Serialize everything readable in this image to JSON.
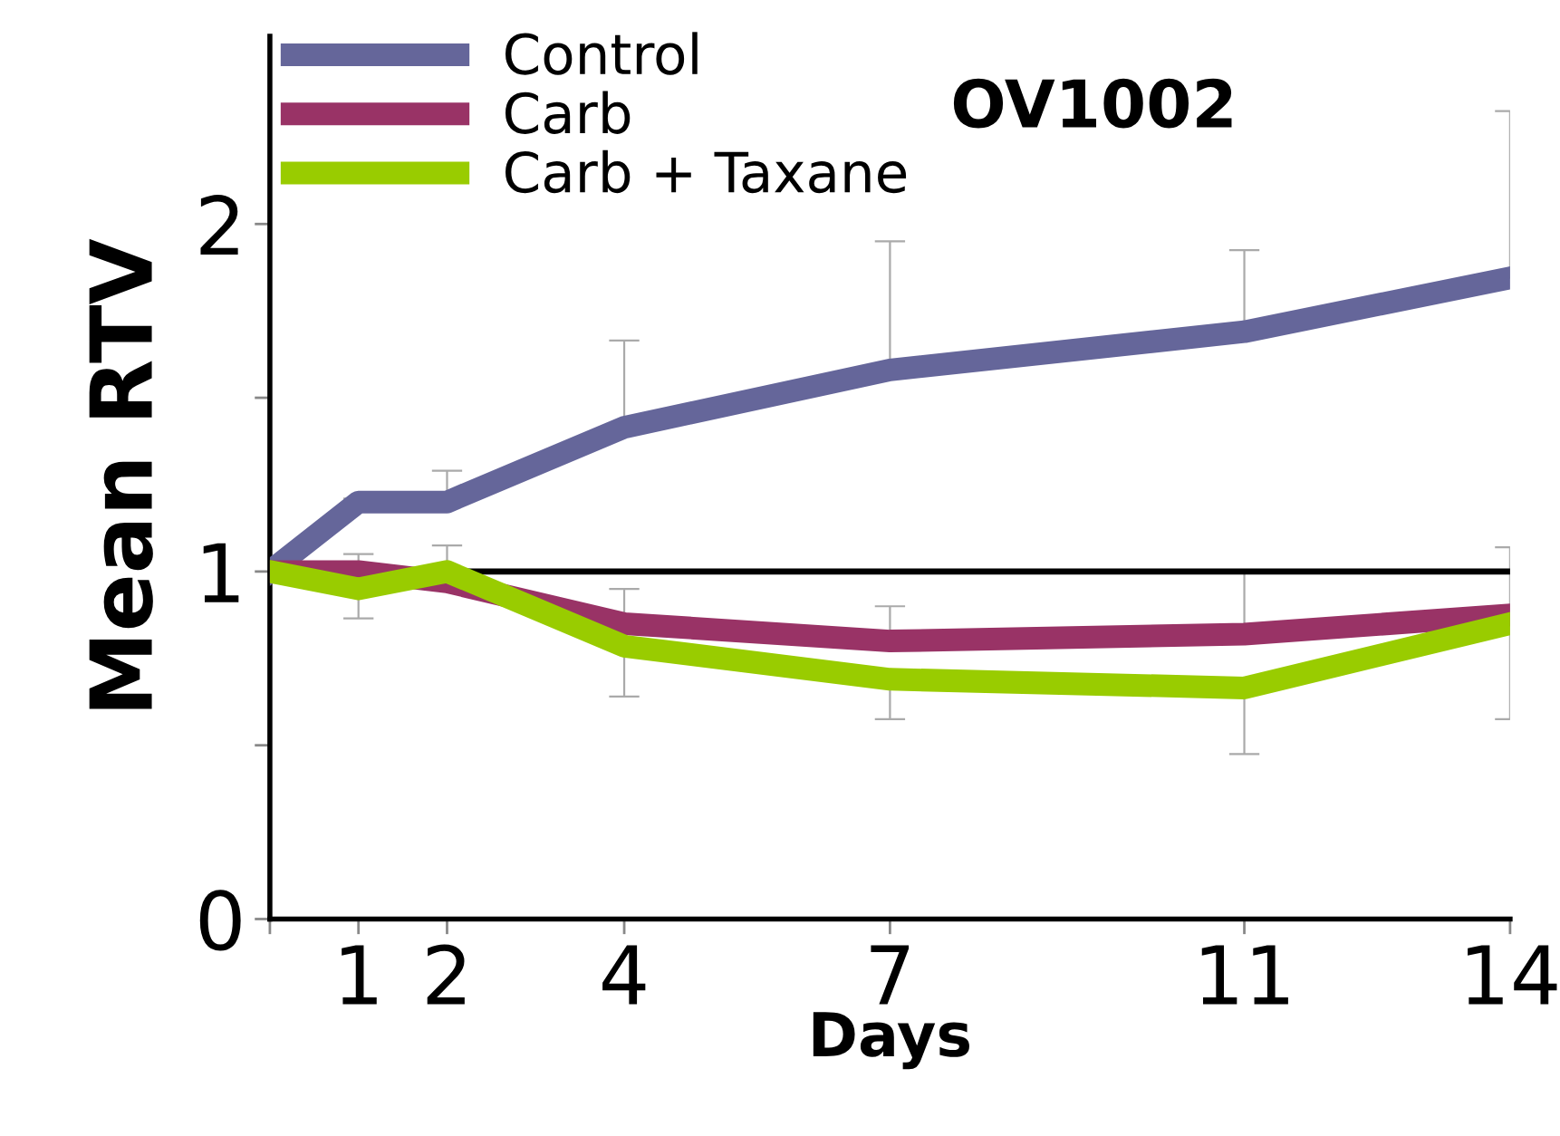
{
  "chart_data": {
    "type": "line",
    "title": "OV1002",
    "xlabel": "Days",
    "ylabel": "Mean RTV",
    "x": [
      0,
      1,
      2,
      4,
      7,
      11,
      14
    ],
    "series": [
      {
        "name": "Control",
        "color": "#65669a",
        "values": [
          1.0,
          1.2,
          1.2,
          1.415,
          1.58,
          1.69,
          1.845
        ],
        "errors": [
          null,
          [
            1.2,
            1.21
          ],
          [
            1.2,
            1.29
          ],
          [
            1.415,
            1.665
          ],
          [
            1.58,
            1.95
          ],
          [
            1.69,
            1.925
          ],
          [
            1.845,
            2.325
          ]
        ]
      },
      {
        "name": "Carb",
        "color": "#993366",
        "values": [
          1.0,
          1.0,
          0.97,
          0.85,
          0.8,
          0.82,
          0.875
        ],
        "errors": [
          null,
          [
            1.0,
            1.05
          ],
          [
            0.97,
            1.075
          ],
          [
            0.85,
            0.95
          ],
          [
            0.8,
            0.9
          ],
          [
            0.82,
            1.0
          ],
          [
            0.875,
            1.07
          ]
        ]
      },
      {
        "name": "Carb + Taxane",
        "color": "#99cc00",
        "values": [
          1.0,
          0.95,
          1.0,
          0.785,
          0.69,
          0.665,
          0.85
        ],
        "errors": [
          null,
          [
            0.865,
            0.95
          ],
          null,
          [
            0.64,
            0.785
          ],
          [
            0.575,
            0.69
          ],
          [
            0.475,
            0.665
          ],
          [
            0.575,
            0.85
          ]
        ]
      }
    ],
    "xlim": [
      0,
      14
    ],
    "xticks": [
      {
        "value": 0,
        "label": null
      },
      1,
      2,
      4,
      7,
      11,
      14
    ],
    "ylim": [
      0,
      2.54
    ],
    "yticks": [
      0,
      {
        "value": 0.5,
        "label": null
      },
      1,
      {
        "value": 1.5,
        "label": null
      },
      2
    ],
    "ref_lines": [
      {
        "axis": "y",
        "value": 1,
        "color": "#000000"
      }
    ],
    "legend": "top left",
    "grid": false,
    "marker": "none",
    "line_style": "solid"
  }
}
